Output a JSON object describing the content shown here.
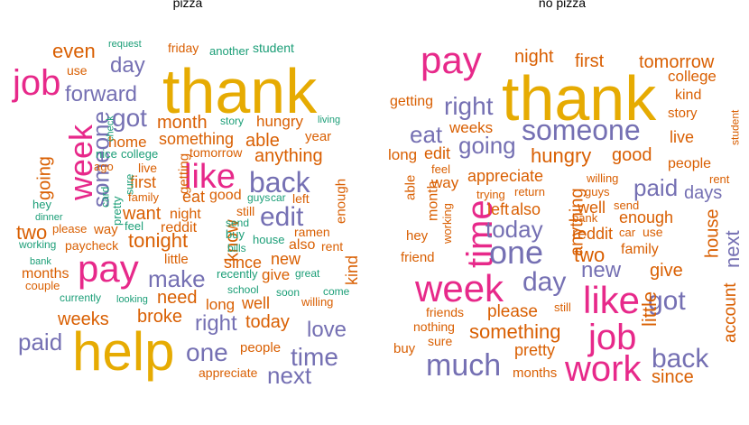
{
  "colors": {
    "green": "#1b9e77",
    "orange": "#d95f02",
    "purple": "#7570b3",
    "pink": "#e7298a",
    "gold": "#e6ab02"
  },
  "panels": [
    {
      "title": "pizza",
      "words": [
        {
          "text": "thank",
          "c": "gold"
        },
        {
          "text": "help",
          "c": "gold"
        },
        {
          "text": "pay",
          "c": "pink"
        },
        {
          "text": "week",
          "c": "pink",
          "rot": true
        },
        {
          "text": "job",
          "c": "pink"
        },
        {
          "text": "like",
          "c": "pink"
        },
        {
          "text": "back",
          "c": "purple"
        },
        {
          "text": "edit",
          "c": "purple"
        },
        {
          "text": "got",
          "c": "purple"
        },
        {
          "text": "forward",
          "c": "purple"
        },
        {
          "text": "day",
          "c": "purple"
        },
        {
          "text": "someone",
          "c": "purple",
          "rot": true
        },
        {
          "text": "make",
          "c": "purple"
        },
        {
          "text": "one",
          "c": "purple"
        },
        {
          "text": "time",
          "c": "purple"
        },
        {
          "text": "paid",
          "c": "purple"
        },
        {
          "text": "love",
          "c": "purple"
        },
        {
          "text": "next",
          "c": "purple"
        },
        {
          "text": "right",
          "c": "purple"
        },
        {
          "text": "even",
          "c": "orange"
        },
        {
          "text": "use",
          "c": "orange"
        },
        {
          "text": "friday",
          "c": "orange"
        },
        {
          "text": "month",
          "c": "orange"
        },
        {
          "text": "hungry",
          "c": "orange"
        },
        {
          "text": "home",
          "c": "orange"
        },
        {
          "text": "something",
          "c": "orange"
        },
        {
          "text": "able",
          "c": "orange"
        },
        {
          "text": "year",
          "c": "orange"
        },
        {
          "text": "anything",
          "c": "orange"
        },
        {
          "text": "going",
          "c": "orange",
          "rot": true
        },
        {
          "text": "ago",
          "c": "orange"
        },
        {
          "text": "first",
          "c": "orange"
        },
        {
          "text": "tomorrow",
          "c": "orange"
        },
        {
          "text": "want",
          "c": "orange"
        },
        {
          "text": "eat",
          "c": "orange"
        },
        {
          "text": "good",
          "c": "orange"
        },
        {
          "text": "left",
          "c": "orange"
        },
        {
          "text": "enough",
          "c": "orange",
          "rot": true
        },
        {
          "text": "getting",
          "c": "orange",
          "rot": true
        },
        {
          "text": "night",
          "c": "orange"
        },
        {
          "text": "two",
          "c": "orange"
        },
        {
          "text": "tonight",
          "c": "orange"
        },
        {
          "text": "reddit",
          "c": "orange"
        },
        {
          "text": "know",
          "c": "orange",
          "rot": true
        },
        {
          "text": "still",
          "c": "orange"
        },
        {
          "text": "ramen",
          "c": "orange"
        },
        {
          "text": "also",
          "c": "orange"
        },
        {
          "text": "rent",
          "c": "orange"
        },
        {
          "text": "way",
          "c": "orange"
        },
        {
          "text": "paycheck",
          "c": "orange"
        },
        {
          "text": "little",
          "c": "orange"
        },
        {
          "text": "since",
          "c": "orange"
        },
        {
          "text": "new",
          "c": "orange"
        },
        {
          "text": "months",
          "c": "orange"
        },
        {
          "text": "give",
          "c": "orange"
        },
        {
          "text": "kind",
          "c": "orange",
          "rot": true
        },
        {
          "text": "couple",
          "c": "orange"
        },
        {
          "text": "need",
          "c": "orange"
        },
        {
          "text": "weeks",
          "c": "orange"
        },
        {
          "text": "broke",
          "c": "orange"
        },
        {
          "text": "long",
          "c": "orange"
        },
        {
          "text": "well",
          "c": "orange"
        },
        {
          "text": "today",
          "c": "orange"
        },
        {
          "text": "people",
          "c": "orange"
        },
        {
          "text": "appreciate",
          "c": "orange"
        },
        {
          "text": "please",
          "c": "orange"
        },
        {
          "text": "family",
          "c": "orange"
        },
        {
          "text": "live",
          "c": "orange"
        },
        {
          "text": "request",
          "c": "green"
        },
        {
          "text": "another",
          "c": "green"
        },
        {
          "text": "student",
          "c": "green"
        },
        {
          "text": "living",
          "c": "green"
        },
        {
          "text": "story",
          "c": "green"
        },
        {
          "text": "check",
          "c": "green",
          "rot": true
        },
        {
          "text": "nice",
          "c": "green"
        },
        {
          "text": "college",
          "c": "green"
        },
        {
          "text": "sure",
          "c": "green",
          "rot": true
        },
        {
          "text": "hey",
          "c": "green"
        },
        {
          "text": "card",
          "c": "green",
          "rot": true
        },
        {
          "text": "pretty",
          "c": "green",
          "rot": true
        },
        {
          "text": "dinner",
          "c": "green"
        },
        {
          "text": "guys",
          "c": "green"
        },
        {
          "text": "car",
          "c": "green"
        },
        {
          "text": "send",
          "c": "green"
        },
        {
          "text": "buy",
          "c": "green"
        },
        {
          "text": "bills",
          "c": "green"
        },
        {
          "text": "house",
          "c": "green"
        },
        {
          "text": "feel",
          "c": "green"
        },
        {
          "text": "working",
          "c": "green"
        },
        {
          "text": "bank",
          "c": "green"
        },
        {
          "text": "recently",
          "c": "green"
        },
        {
          "text": "great",
          "c": "green"
        },
        {
          "text": "school",
          "c": "green"
        },
        {
          "text": "soon",
          "c": "green"
        },
        {
          "text": "come",
          "c": "green"
        },
        {
          "text": "currently",
          "c": "green"
        },
        {
          "text": "looking",
          "c": "green"
        },
        {
          "text": "willing",
          "c": "orange"
        }
      ]
    },
    {
      "title": "no pizza",
      "words": [
        {
          "text": "thank",
          "c": "gold"
        },
        {
          "text": "pay",
          "c": "pink"
        },
        {
          "text": "week",
          "c": "pink"
        },
        {
          "text": "time",
          "c": "pink",
          "rot": true
        },
        {
          "text": "like",
          "c": "pink"
        },
        {
          "text": "job",
          "c": "pink"
        },
        {
          "text": "work",
          "c": "pink"
        },
        {
          "text": "someone",
          "c": "purple"
        },
        {
          "text": "right",
          "c": "purple"
        },
        {
          "text": "eat",
          "c": "purple"
        },
        {
          "text": "going",
          "c": "purple"
        },
        {
          "text": "one",
          "c": "purple"
        },
        {
          "text": "today",
          "c": "purple"
        },
        {
          "text": "day",
          "c": "purple"
        },
        {
          "text": "paid",
          "c": "purple"
        },
        {
          "text": "days",
          "c": "purple"
        },
        {
          "text": "new",
          "c": "purple"
        },
        {
          "text": "got",
          "c": "purple"
        },
        {
          "text": "much",
          "c": "purple"
        },
        {
          "text": "back",
          "c": "purple"
        },
        {
          "text": "next",
          "c": "purple",
          "rot": true
        },
        {
          "text": "night",
          "c": "orange"
        },
        {
          "text": "first",
          "c": "orange"
        },
        {
          "text": "tomorrow",
          "c": "orange"
        },
        {
          "text": "college",
          "c": "orange"
        },
        {
          "text": "kind",
          "c": "orange"
        },
        {
          "text": "getting",
          "c": "orange"
        },
        {
          "text": "story",
          "c": "orange"
        },
        {
          "text": "weeks",
          "c": "orange"
        },
        {
          "text": "live",
          "c": "orange"
        },
        {
          "text": "student",
          "c": "orange",
          "rot": true
        },
        {
          "text": "long",
          "c": "orange"
        },
        {
          "text": "edit",
          "c": "orange"
        },
        {
          "text": "hungry",
          "c": "orange"
        },
        {
          "text": "good",
          "c": "orange"
        },
        {
          "text": "people",
          "c": "orange"
        },
        {
          "text": "feel",
          "c": "orange"
        },
        {
          "text": "able",
          "c": "orange",
          "rot": true
        },
        {
          "text": "way",
          "c": "orange"
        },
        {
          "text": "appreciate",
          "c": "orange"
        },
        {
          "text": "willing",
          "c": "orange"
        },
        {
          "text": "rent",
          "c": "orange"
        },
        {
          "text": "month",
          "c": "orange",
          "rot": true
        },
        {
          "text": "trying",
          "c": "orange"
        },
        {
          "text": "return",
          "c": "orange"
        },
        {
          "text": "guys",
          "c": "orange"
        },
        {
          "text": "left",
          "c": "orange"
        },
        {
          "text": "also",
          "c": "orange"
        },
        {
          "text": "well",
          "c": "orange"
        },
        {
          "text": "send",
          "c": "orange"
        },
        {
          "text": "working",
          "c": "orange",
          "rot": true
        },
        {
          "text": "anything",
          "c": "orange",
          "rot": true
        },
        {
          "text": "bank",
          "c": "orange"
        },
        {
          "text": "enough",
          "c": "orange"
        },
        {
          "text": "hey",
          "c": "orange"
        },
        {
          "text": "reddit",
          "c": "orange"
        },
        {
          "text": "car",
          "c": "orange"
        },
        {
          "text": "use",
          "c": "orange"
        },
        {
          "text": "house",
          "c": "orange",
          "rot": true
        },
        {
          "text": "two",
          "c": "orange"
        },
        {
          "text": "family",
          "c": "orange"
        },
        {
          "text": "friend",
          "c": "orange"
        },
        {
          "text": "little",
          "c": "orange",
          "rot": true
        },
        {
          "text": "give",
          "c": "orange"
        },
        {
          "text": "account",
          "c": "orange",
          "rot": true
        },
        {
          "text": "friends",
          "c": "orange"
        },
        {
          "text": "please",
          "c": "orange"
        },
        {
          "text": "still",
          "c": "orange"
        },
        {
          "text": "nothing",
          "c": "orange"
        },
        {
          "text": "something",
          "c": "orange"
        },
        {
          "text": "sure",
          "c": "orange"
        },
        {
          "text": "buy",
          "c": "orange"
        },
        {
          "text": "pretty",
          "c": "orange"
        },
        {
          "text": "months",
          "c": "orange"
        },
        {
          "text": "since",
          "c": "orange"
        }
      ]
    }
  ]
}
